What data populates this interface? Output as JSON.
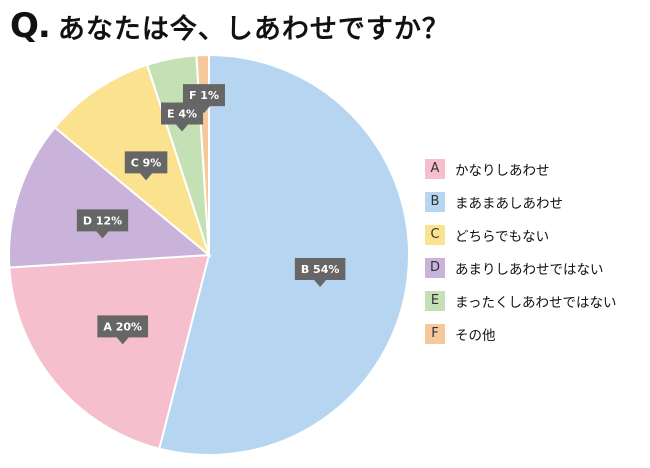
{
  "title": {
    "mark": "Q.",
    "text": "あなたは今、しあわせですか？"
  },
  "chart_data": {
    "type": "pie",
    "title": "あなたは今、しあわせですか？",
    "start_angle_deg": 0,
    "direction": "clockwise",
    "slices": [
      {
        "letter": "B",
        "name": "まあまあしあわせ",
        "value": 54,
        "label": "B 54%",
        "color": "#b5d5f0"
      },
      {
        "letter": "A",
        "name": "かなりしあわせ",
        "value": 20,
        "label": "A 20%",
        "color": "#f5bfcd"
      },
      {
        "letter": "D",
        "name": "あまりしあわせではない",
        "value": 12,
        "label": "D 12%",
        "color": "#c9b3db"
      },
      {
        "letter": "C",
        "name": "どちらでもない",
        "value": 9,
        "label": "C 9%",
        "color": "#fbe28f"
      },
      {
        "letter": "E",
        "name": "まったくしあわせではない",
        "value": 4,
        "label": "E 4%",
        "color": "#c4e1b5"
      },
      {
        "letter": "F",
        "name": "その他",
        "value": 1,
        "label": "F 1%",
        "color": "#f6c89b"
      }
    ],
    "legend": [
      {
        "letter": "A",
        "label": "かなりしあわせ",
        "color": "#f5bfcd"
      },
      {
        "letter": "B",
        "label": "まあまあしあわせ",
        "color": "#b5d5f0"
      },
      {
        "letter": "C",
        "label": "どちらでもない",
        "color": "#fbe28f"
      },
      {
        "letter": "D",
        "label": "あまりしあわせではない",
        "color": "#c9b3db"
      },
      {
        "letter": "E",
        "label": "まったくしあわせではない",
        "color": "#c4e1b5"
      },
      {
        "letter": "F",
        "label": "その他",
        "color": "#f6c89b"
      }
    ],
    "legend_position": "right",
    "data_label_color": "#666666"
  }
}
